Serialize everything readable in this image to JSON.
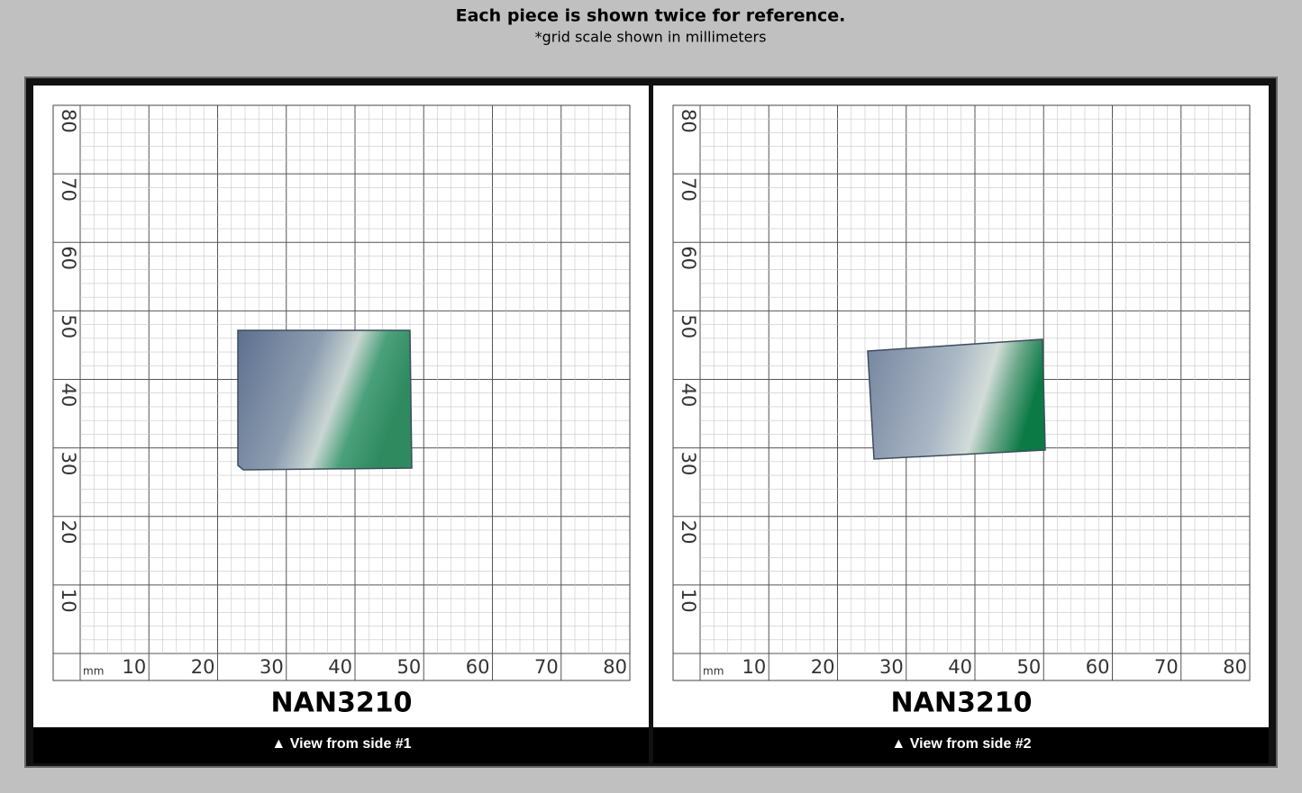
{
  "header": {
    "title": "Each piece is shown twice for reference.",
    "subtitle": "*grid scale shown in millimeters"
  },
  "grid": {
    "unit": "mm",
    "x_labels": [
      "10",
      "20",
      "30",
      "40",
      "50",
      "60",
      "70",
      "80"
    ],
    "y_labels": [
      "10",
      "20",
      "30",
      "40",
      "50",
      "60",
      "70",
      "80"
    ]
  },
  "panels": [
    {
      "label": "NAN3210",
      "caption": "▲ View from side #1"
    },
    {
      "label": "NAN3210",
      "caption": "▲ View from side #2"
    }
  ]
}
